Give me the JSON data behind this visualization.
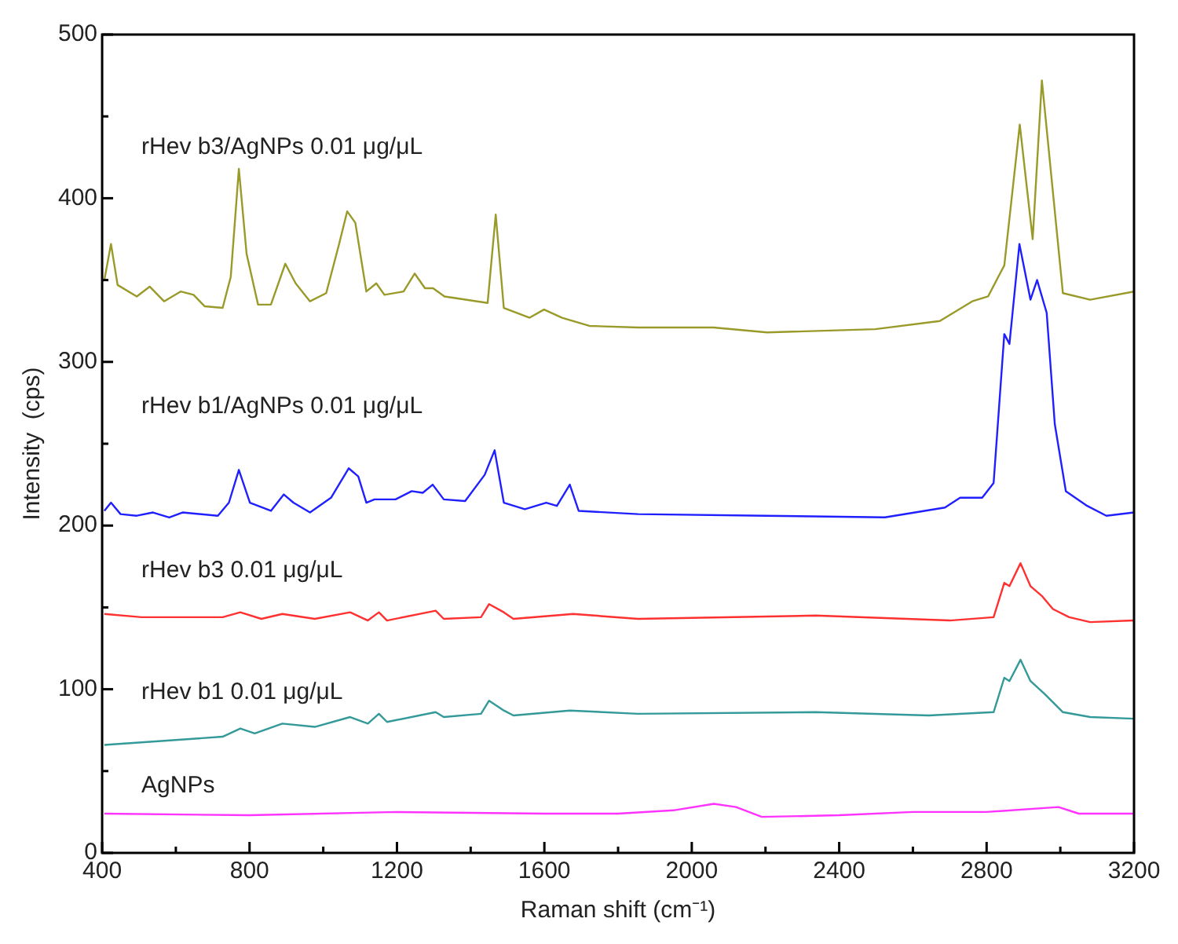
{
  "chart_data": {
    "type": "line",
    "xlabel": "Raman shift (cm⁻¹)",
    "ylabel": "Intensity  (cps)",
    "xlim": [
      400,
      3200
    ],
    "ylim": [
      0,
      500
    ],
    "xticks": [
      400,
      {
        "value": 600,
        "label": null
      },
      800,
      {
        "value": 1000,
        "label": null
      },
      1200,
      {
        "value": 1400,
        "label": null
      },
      1600,
      {
        "value": 1800,
        "label": null
      },
      2000,
      {
        "value": 2200,
        "label": null
      },
      2400,
      {
        "value": 2600,
        "label": null
      },
      2800,
      {
        "value": 3000,
        "label": null
      },
      3200
    ],
    "yticks": [
      0,
      {
        "value": 50,
        "label": null
      },
      100,
      {
        "value": 150,
        "label": null
      },
      200,
      {
        "value": 250,
        "label": null
      },
      300,
      {
        "value": 350,
        "label": null
      },
      400,
      {
        "value": 450,
        "label": null
      },
      500
    ],
    "grid": false,
    "legend": false,
    "marker": "none",
    "line_style": "solid",
    "series": [
      {
        "name": "rHev b3/AgNPs 0.01 μg/μL",
        "color": "#9a9a2a",
        "x": [
          406,
          424,
          442,
          494,
          529,
          568,
          613,
          648,
          678,
          727,
          749,
          771,
          792,
          823,
          858,
          897,
          925,
          964,
          1008,
          1043,
          1065,
          1087,
          1117,
          1144,
          1166,
          1218,
          1248,
          1276,
          1298,
          1329,
          1446,
          1468,
          1490,
          1560,
          1599,
          1648,
          1722,
          1854,
          2059,
          2204,
          2498,
          2673,
          2761,
          2804,
          2848,
          2890,
          2925,
          2950,
          3007,
          3081,
          3200
        ],
        "values": [
          350,
          372,
          347,
          340,
          346,
          337,
          343,
          341,
          334,
          333,
          352,
          418,
          366,
          335,
          335,
          360,
          348,
          337,
          342,
          372,
          392,
          385,
          343,
          348,
          341,
          343,
          354,
          345,
          345,
          340,
          336,
          390,
          333,
          327,
          332,
          327,
          322,
          321,
          321,
          318,
          320,
          325,
          337,
          340,
          359,
          445,
          375,
          472,
          342,
          338,
          343
        ]
      },
      {
        "name": "rHev b1/AgNPs 0.01 μg/μL",
        "color": "#2020ff",
        "x": [
          406,
          424,
          450,
          494,
          538,
          582,
          618,
          714,
          744,
          771,
          801,
          858,
          893,
          919,
          964,
          1021,
          1069,
          1095,
          1117,
          1139,
          1196,
          1240,
          1270,
          1297,
          1327,
          1385,
          1438,
          1465,
          1490,
          1547,
          1605,
          1634,
          1669,
          1693,
          1854,
          2204,
          2524,
          2687,
          2728,
          2788,
          2819,
          2848,
          2862,
          2889,
          2919,
          2937,
          2963,
          2985,
          3015,
          3073,
          3125,
          3200
        ],
        "values": [
          209,
          214,
          207,
          206,
          208,
          205,
          208,
          206,
          214,
          234,
          214,
          209,
          219,
          214,
          208,
          217,
          235,
          230,
          214,
          216,
          216,
          221,
          220,
          225,
          216,
          215,
          231,
          246,
          214,
          210,
          214,
          212,
          225,
          209,
          207,
          206,
          205,
          211,
          217,
          217,
          226,
          317,
          311,
          372,
          338,
          350,
          330,
          262,
          221,
          212,
          206,
          208
        ]
      },
      {
        "name": "rHev b3 0.01 μg/μL",
        "color": "#ff3030",
        "x": [
          406,
          507,
          727,
          775,
          832,
          889,
          977,
          1073,
          1121,
          1151,
          1173,
          1305,
          1327,
          1428,
          1450,
          1490,
          1516,
          1678,
          1854,
          2336,
          2700,
          2819,
          2848,
          2862,
          2892,
          2919,
          2950,
          2980,
          3024,
          3081,
          3200
        ],
        "values": [
          146,
          144,
          144,
          147,
          143,
          146,
          143,
          147,
          142,
          147,
          142,
          148,
          143,
          144,
          152,
          147,
          143,
          146,
          143,
          145,
          142,
          144,
          165,
          163,
          177,
          163,
          157,
          149,
          144,
          141,
          142
        ]
      },
      {
        "name": "rHev b1 0.01 μg/μL",
        "color": "#339999",
        "x": [
          406,
          538,
          727,
          775,
          814,
          889,
          977,
          1073,
          1121,
          1151,
          1173,
          1305,
          1327,
          1428,
          1450,
          1490,
          1516,
          1669,
          1854,
          2336,
          2643,
          2819,
          2848,
          2862,
          2892,
          2919,
          2958,
          3007,
          3081,
          3200
        ],
        "values": [
          66,
          68,
          71,
          76,
          73,
          79,
          77,
          83,
          79,
          85,
          80,
          86,
          83,
          85,
          93,
          87,
          84,
          87,
          85,
          86,
          84,
          86,
          107,
          105,
          118,
          105,
          97,
          86,
          83,
          82
        ]
      },
      {
        "name": "AgNPs",
        "color": "#ff33ff",
        "x": [
          406,
          800,
          1200,
          1600,
          1800,
          1950,
          2060,
          2120,
          2190,
          2400,
          2600,
          2800,
          2995,
          3050,
          3200
        ],
        "values": [
          24,
          23,
          25,
          24,
          24,
          26,
          30,
          28,
          22,
          23,
          25,
          25,
          28,
          24,
          24
        ]
      }
    ]
  }
}
